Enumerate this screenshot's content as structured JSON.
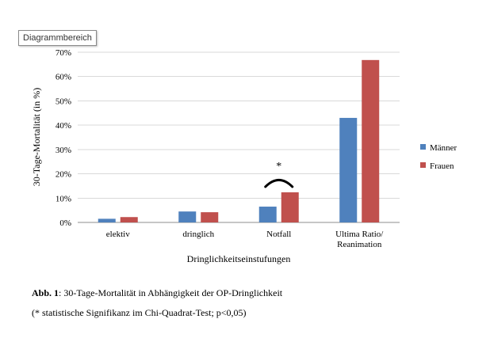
{
  "tooltip": "Diagrammbereich",
  "chart_data": {
    "type": "bar",
    "categories": [
      "elektiv",
      "dringlich",
      "Notfall",
      [
        "Ultima Ratio/",
        "Reanimation"
      ]
    ],
    "series": [
      {
        "name": "Männer",
        "color": "#4f81bd",
        "values": [
          1.5,
          4.5,
          6.5,
          43
        ]
      },
      {
        "name": "Frauen",
        "color": "#c0504d",
        "values": [
          2.2,
          4.2,
          12.4,
          66.8
        ]
      }
    ],
    "xlabel": "Dringlichkeitseinstufungen",
    "ylabel": "30-Tage-Mortalität (in %)",
    "ylim": [
      0,
      70
    ],
    "yticks": [
      "0%",
      "10%",
      "20%",
      "30%",
      "40%",
      "50%",
      "60%",
      "70%"
    ],
    "grid": true,
    "legend_position": "right",
    "annotation": {
      "text": "*",
      "category_index": 2
    }
  },
  "caption": {
    "label": "Abb. 1",
    "text": ": 30-Tage-Mortalität  in Abhängigkeit  der OP-Dringlichkeit",
    "note": "(* statistische Signifikanz im Chi-Quadrat-Test;  p<0,05)"
  }
}
